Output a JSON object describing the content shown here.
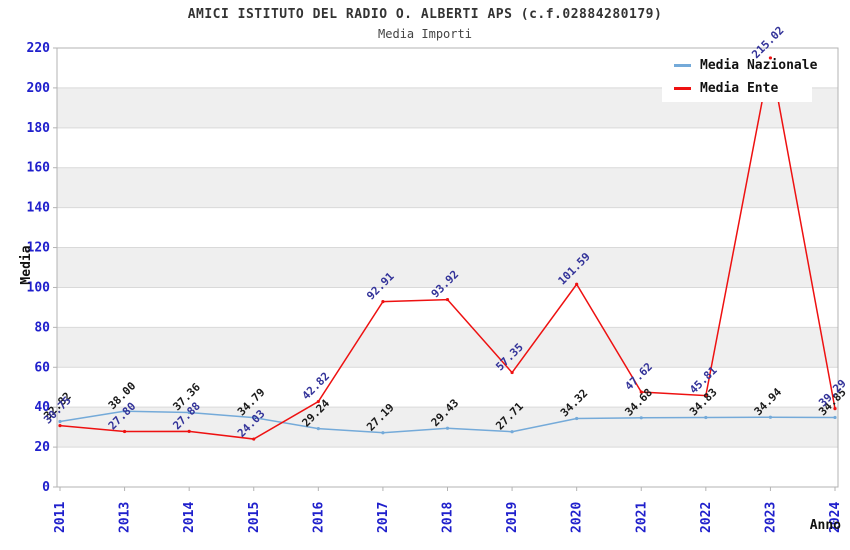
{
  "chart_data": {
    "type": "line",
    "title": "AMICI ISTITUTO DEL RADIO O. ALBERTI APS (c.f.02884280179)",
    "subtitle": "Media Importi",
    "xlabel": "Anno",
    "ylabel": "Media",
    "categories": [
      "2011",
      "2013",
      "2014",
      "2015",
      "2016",
      "2017",
      "2018",
      "2019",
      "2020",
      "2021",
      "2022",
      "2023",
      "2024"
    ],
    "series": [
      {
        "name": "Media Nazionale",
        "color": "#74aad9",
        "label_color": "#1a1a1a",
        "values": [
          32.82,
          38.0,
          37.36,
          34.79,
          29.24,
          27.19,
          29.43,
          27.71,
          34.32,
          34.68,
          34.83,
          34.94,
          34.85
        ]
      },
      {
        "name": "Media Ente",
        "color": "#ee1111",
        "label_color": "#333399",
        "values": [
          30.75,
          27.8,
          27.88,
          24.03,
          42.82,
          92.91,
          93.92,
          57.35,
          101.59,
          47.62,
          45.81,
          215.02,
          39.29
        ]
      }
    ],
    "ylim": [
      0,
      220
    ],
    "ytick_step": 20,
    "grid": true,
    "legend_position": "top-right",
    "colors": {
      "band_fill": "#efefef",
      "grid_line": "#d9d9d9",
      "plot_border": "#b3b3b3",
      "tick_label": "#2020cc",
      "axis_title": "#111111",
      "title_text": "#333333"
    }
  }
}
